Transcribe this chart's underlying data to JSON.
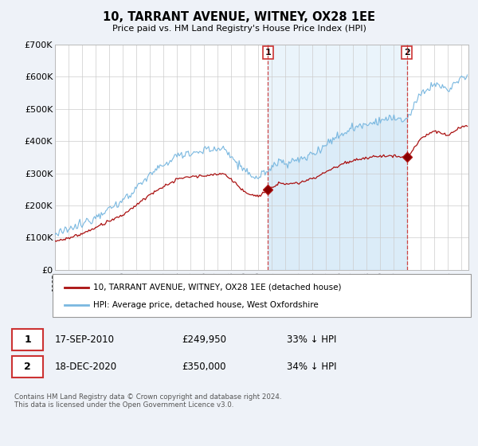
{
  "title": "10, TARRANT AVENUE, WITNEY, OX28 1EE",
  "subtitle": "Price paid vs. HM Land Registry's House Price Index (HPI)",
  "hpi_color": "#7ab8e0",
  "hpi_fill_color": "#d6eaf8",
  "price_color": "#aa1111",
  "dashed_line_color": "#cc3333",
  "background_color": "#eef2f8",
  "plot_bg_color": "#ffffff",
  "ylim": [
    0,
    700000
  ],
  "yticks": [
    0,
    100000,
    200000,
    300000,
    400000,
    500000,
    600000,
    700000
  ],
  "legend_line1": "10, TARRANT AVENUE, WITNEY, OX28 1EE (detached house)",
  "legend_line2": "HPI: Average price, detached house, West Oxfordshire",
  "annotation1_date": "17-SEP-2010",
  "annotation1_price": "£249,950",
  "annotation1_pct": "33% ↓ HPI",
  "annotation2_date": "18-DEC-2020",
  "annotation2_price": "£350,000",
  "annotation2_pct": "34% ↓ HPI",
  "footer": "Contains HM Land Registry data © Crown copyright and database right 2024.\nThis data is licensed under the Open Government Licence v3.0.",
  "sale1_x": 2010.72,
  "sale1_y": 249950,
  "sale2_x": 2020.96,
  "sale2_y": 350000,
  "xmin": 1995.0,
  "xmax": 2025.5
}
